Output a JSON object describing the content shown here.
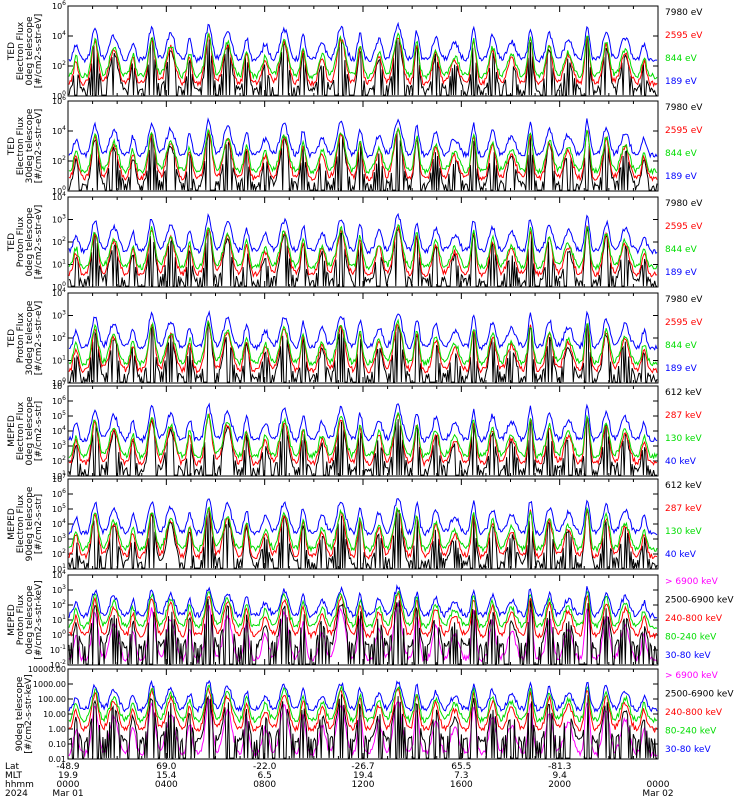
{
  "chart_data": [
    {
      "type": "line",
      "ylabel": [
        "TED",
        "Electron Flux",
        "0deg telescope",
        "[#/cm2-s-str-eV]"
      ],
      "log": true,
      "ytick_labels": [
        "10^0",
        "10^2",
        "10^4",
        "10^6"
      ],
      "legend": [
        {
          "name": "7980 eV",
          "color": "#000000"
        },
        {
          "name": "2595 eV",
          "color": "#ff0000"
        },
        {
          "name": "844 eV",
          "color": "#00dd00"
        },
        {
          "name": "189 eV",
          "color": "#0000ff"
        }
      ]
    },
    {
      "type": "line",
      "ylabel": [
        "TED",
        "Electron Flux",
        "30deg telescope",
        "[#/cm2-s-str-eV]"
      ],
      "log": true,
      "ytick_labels": [
        "10^0",
        "10^2",
        "10^4",
        "10^6"
      ],
      "legend": [
        {
          "name": "7980 eV",
          "color": "#000000"
        },
        {
          "name": "2595 eV",
          "color": "#ff0000"
        },
        {
          "name": "844 eV",
          "color": "#00dd00"
        },
        {
          "name": "189 eV",
          "color": "#0000ff"
        }
      ]
    },
    {
      "type": "line",
      "ylabel": [
        "TED",
        "Proton Flux",
        "0deg telescope",
        "[#/cm2-s-str-eV]"
      ],
      "log": true,
      "ytick_labels": [
        "10^0",
        "10^1",
        "10^2",
        "10^3",
        "10^4"
      ],
      "legend": [
        {
          "name": "7980 eV",
          "color": "#000000"
        },
        {
          "name": "2595 eV",
          "color": "#ff0000"
        },
        {
          "name": "844 eV",
          "color": "#00dd00"
        },
        {
          "name": "189 eV",
          "color": "#0000ff"
        }
      ]
    },
    {
      "type": "line",
      "ylabel": [
        "TED",
        "Proton Flux",
        "30deg telescope",
        "[#/cm2-s-str-eV]"
      ],
      "log": true,
      "ytick_labels": [
        "10^0",
        "10^1",
        "10^2",
        "10^3",
        "10^4"
      ],
      "legend": [
        {
          "name": "7980 eV",
          "color": "#000000"
        },
        {
          "name": "2595 eV",
          "color": "#ff0000"
        },
        {
          "name": "844 eV",
          "color": "#00dd00"
        },
        {
          "name": "189 eV",
          "color": "#0000ff"
        }
      ]
    },
    {
      "type": "line",
      "ylabel": [
        "MEPED",
        "Electron Flux",
        "0deg telescope",
        "[#/cm2-s-str]"
      ],
      "log": true,
      "ytick_labels": [
        "10^1",
        "10^2",
        "10^3",
        "10^4",
        "10^5",
        "10^6",
        "10^7"
      ],
      "legend": [
        {
          "name": "612 keV",
          "color": "#000000"
        },
        {
          "name": "287 keV",
          "color": "#ff0000"
        },
        {
          "name": "130 keV",
          "color": "#00dd00"
        },
        {
          "name": "40 keV",
          "color": "#0000ff"
        }
      ]
    },
    {
      "type": "line",
      "ylabel": [
        "MEPED",
        "Electron Flux",
        "90deg telescope",
        "[#/cm2-s-str]"
      ],
      "log": true,
      "ytick_labels": [
        "10^1",
        "10^2",
        "10^3",
        "10^4",
        "10^5",
        "10^6",
        "10^7"
      ],
      "legend": [
        {
          "name": "612 keV",
          "color": "#000000"
        },
        {
          "name": "287 keV",
          "color": "#ff0000"
        },
        {
          "name": "130 keV",
          "color": "#00dd00"
        },
        {
          "name": "40 keV",
          "color": "#0000ff"
        }
      ]
    },
    {
      "type": "line",
      "ylabel": [
        "MEPED",
        "Proton Flux",
        "0deg telescope",
        "[#/cm2-s-str-keV]"
      ],
      "log": true,
      "ytick_labels": [
        "10^-2",
        "10^-1",
        "10^0",
        "10^1",
        "10^2",
        "10^3",
        "10^4"
      ],
      "legend": [
        {
          "name": "> 6900 keV",
          "color": "#ff00ff"
        },
        {
          "name": "2500-6900 keV",
          "color": "#000000"
        },
        {
          "name": "240-800 keV",
          "color": "#ff0000"
        },
        {
          "name": "80-240 keV",
          "color": "#00dd00"
        },
        {
          "name": "30-80 keV",
          "color": "#0000ff"
        }
      ]
    },
    {
      "type": "line",
      "ylabel": [
        "90deg telescope",
        "[#/cm2-s-str-keV]"
      ],
      "log": true,
      "ytick_labels": [
        "0.01",
        "0.10",
        "1.00",
        "10.00",
        "100.00",
        "1000.00",
        "10000.00"
      ],
      "legend": [
        {
          "name": "> 6900 keV",
          "color": "#ff00ff"
        },
        {
          "name": "2500-6900 keV",
          "color": "#000000"
        },
        {
          "name": "240-800 keV",
          "color": "#ff0000"
        },
        {
          "name": "80-240 keV",
          "color": "#00dd00"
        },
        {
          "name": "30-80 keV",
          "color": "#0000ff"
        }
      ]
    }
  ],
  "xaxis": {
    "row_labels": [
      "Lat",
      "MLT",
      "hhmm",
      "2024"
    ],
    "columns": [
      {
        "lat": "-48.9",
        "mlt": "19.9",
        "hhmm": "0000",
        "date": "Mar 01"
      },
      {
        "lat": "69.0",
        "mlt": "15.4",
        "hhmm": "0400",
        "date": ""
      },
      {
        "lat": "-22.0",
        "mlt": "6.5",
        "hhmm": "0800",
        "date": ""
      },
      {
        "lat": "-26.7",
        "mlt": "19.4",
        "hhmm": "1200",
        "date": ""
      },
      {
        "lat": "65.5",
        "mlt": "7.3",
        "hhmm": "1600",
        "date": ""
      },
      {
        "lat": "-81.3",
        "mlt": "9.4",
        "hhmm": "2000",
        "date": ""
      },
      {
        "lat": "",
        "mlt": "",
        "hhmm": "0000",
        "date": "Mar 02"
      }
    ]
  }
}
